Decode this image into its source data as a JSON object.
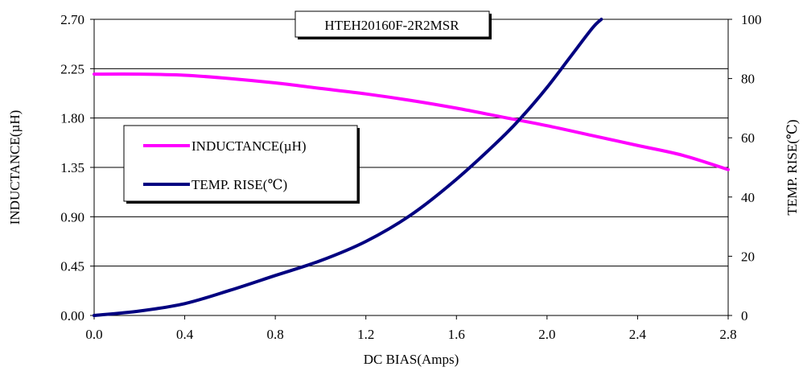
{
  "chart_data": {
    "type": "line",
    "title": "HTEH20160F-2R2MSR",
    "xlabel": "DC BIAS(Amps)",
    "ylabel_left": "INDUCTANCE(µH)",
    "ylabel_right": "TEMP. RISE(℃)",
    "xlim": [
      0,
      2.8
    ],
    "ylim_left": [
      0,
      2.7
    ],
    "ylim_right": [
      0,
      100
    ],
    "x_ticks": [
      "0.0",
      "0.4",
      "0.8",
      "1.2",
      "1.6",
      "2.0",
      "2.4",
      "2.8"
    ],
    "y_left_ticks": [
      "0.00",
      "0.45",
      "0.90",
      "1.35",
      "1.80",
      "2.25",
      "2.70"
    ],
    "y_right_ticks": [
      "0",
      "20",
      "40",
      "60",
      "80",
      "100"
    ],
    "grid": "horizontal",
    "legend_position": "left",
    "series": [
      {
        "name": "INDUCTANCE(µH)",
        "axis": "left",
        "color": "#ff00ff",
        "x": [
          0,
          0.2,
          0.4,
          0.6,
          0.8,
          1.0,
          1.2,
          1.4,
          1.6,
          1.8,
          2.0,
          2.2,
          2.4,
          2.6,
          2.8
        ],
        "y": [
          2.2,
          2.2,
          2.19,
          2.16,
          2.12,
          2.07,
          2.02,
          1.96,
          1.89,
          1.81,
          1.73,
          1.64,
          1.55,
          1.46,
          1.33
        ]
      },
      {
        "name": "TEMP. RISE(℃)",
        "axis": "right",
        "color": "#000080",
        "x": [
          0,
          0.2,
          0.4,
          0.6,
          0.8,
          1.0,
          1.2,
          1.4,
          1.6,
          1.8,
          1.9,
          2.0,
          2.1,
          2.2,
          2.24
        ],
        "y": [
          0,
          1.5,
          4,
          8.5,
          13.5,
          18.5,
          25,
          34,
          46,
          60,
          68,
          77,
          87,
          97,
          100
        ]
      }
    ]
  }
}
